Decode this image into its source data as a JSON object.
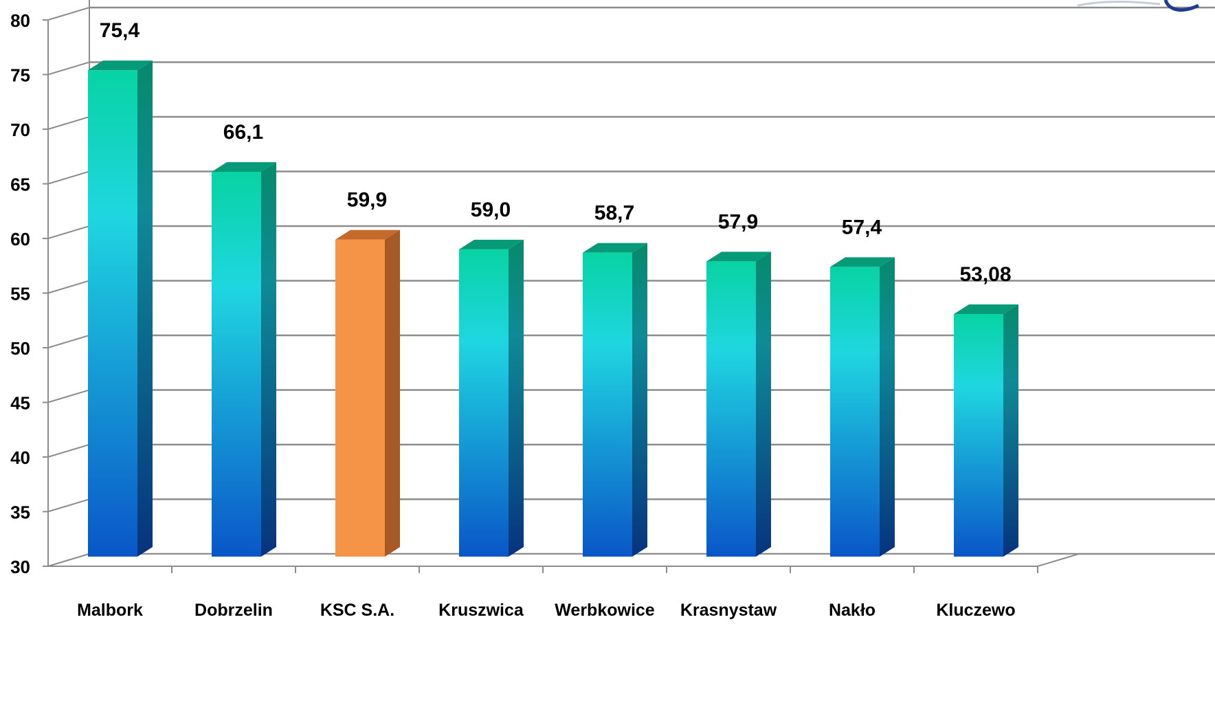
{
  "chart_data": {
    "type": "bar",
    "title": "",
    "xlabel": "",
    "ylabel": "",
    "ylim": [
      30,
      80
    ],
    "y_ticks": [
      "30",
      "35",
      "40",
      "45",
      "50",
      "55",
      "60",
      "65",
      "70",
      "75",
      "80"
    ],
    "y_tick_values": [
      30,
      35,
      40,
      45,
      50,
      55,
      60,
      65,
      70,
      75,
      80
    ],
    "categories": [
      "Malbork",
      "Dobrzelin",
      "KSC S.A.",
      "Kruszwica",
      "Werbkowice",
      "Krasnystaw",
      "Nakło",
      "Kluczewo"
    ],
    "values": [
      75.4,
      66.1,
      59.9,
      59.0,
      58.7,
      57.9,
      57.4,
      53.08
    ],
    "value_labels": [
      "75,4",
      "66,1",
      "59,9",
      "59,0",
      "58,7",
      "57,9",
      "57,4",
      "53,08"
    ],
    "highlight_index": 2,
    "grid": true,
    "style": "3d-bar",
    "colors": {
      "bar_top": "#07d3a3",
      "bar_mid": "#1fd6e0",
      "bar_bottom": "#0a56c8",
      "highlight_front": "#f59447",
      "highlight_side": "#a85a26",
      "grid_line": "#8c8c8c",
      "axis_text": "#000000"
    }
  },
  "logo": {
    "icon": "company-logo-icon"
  }
}
